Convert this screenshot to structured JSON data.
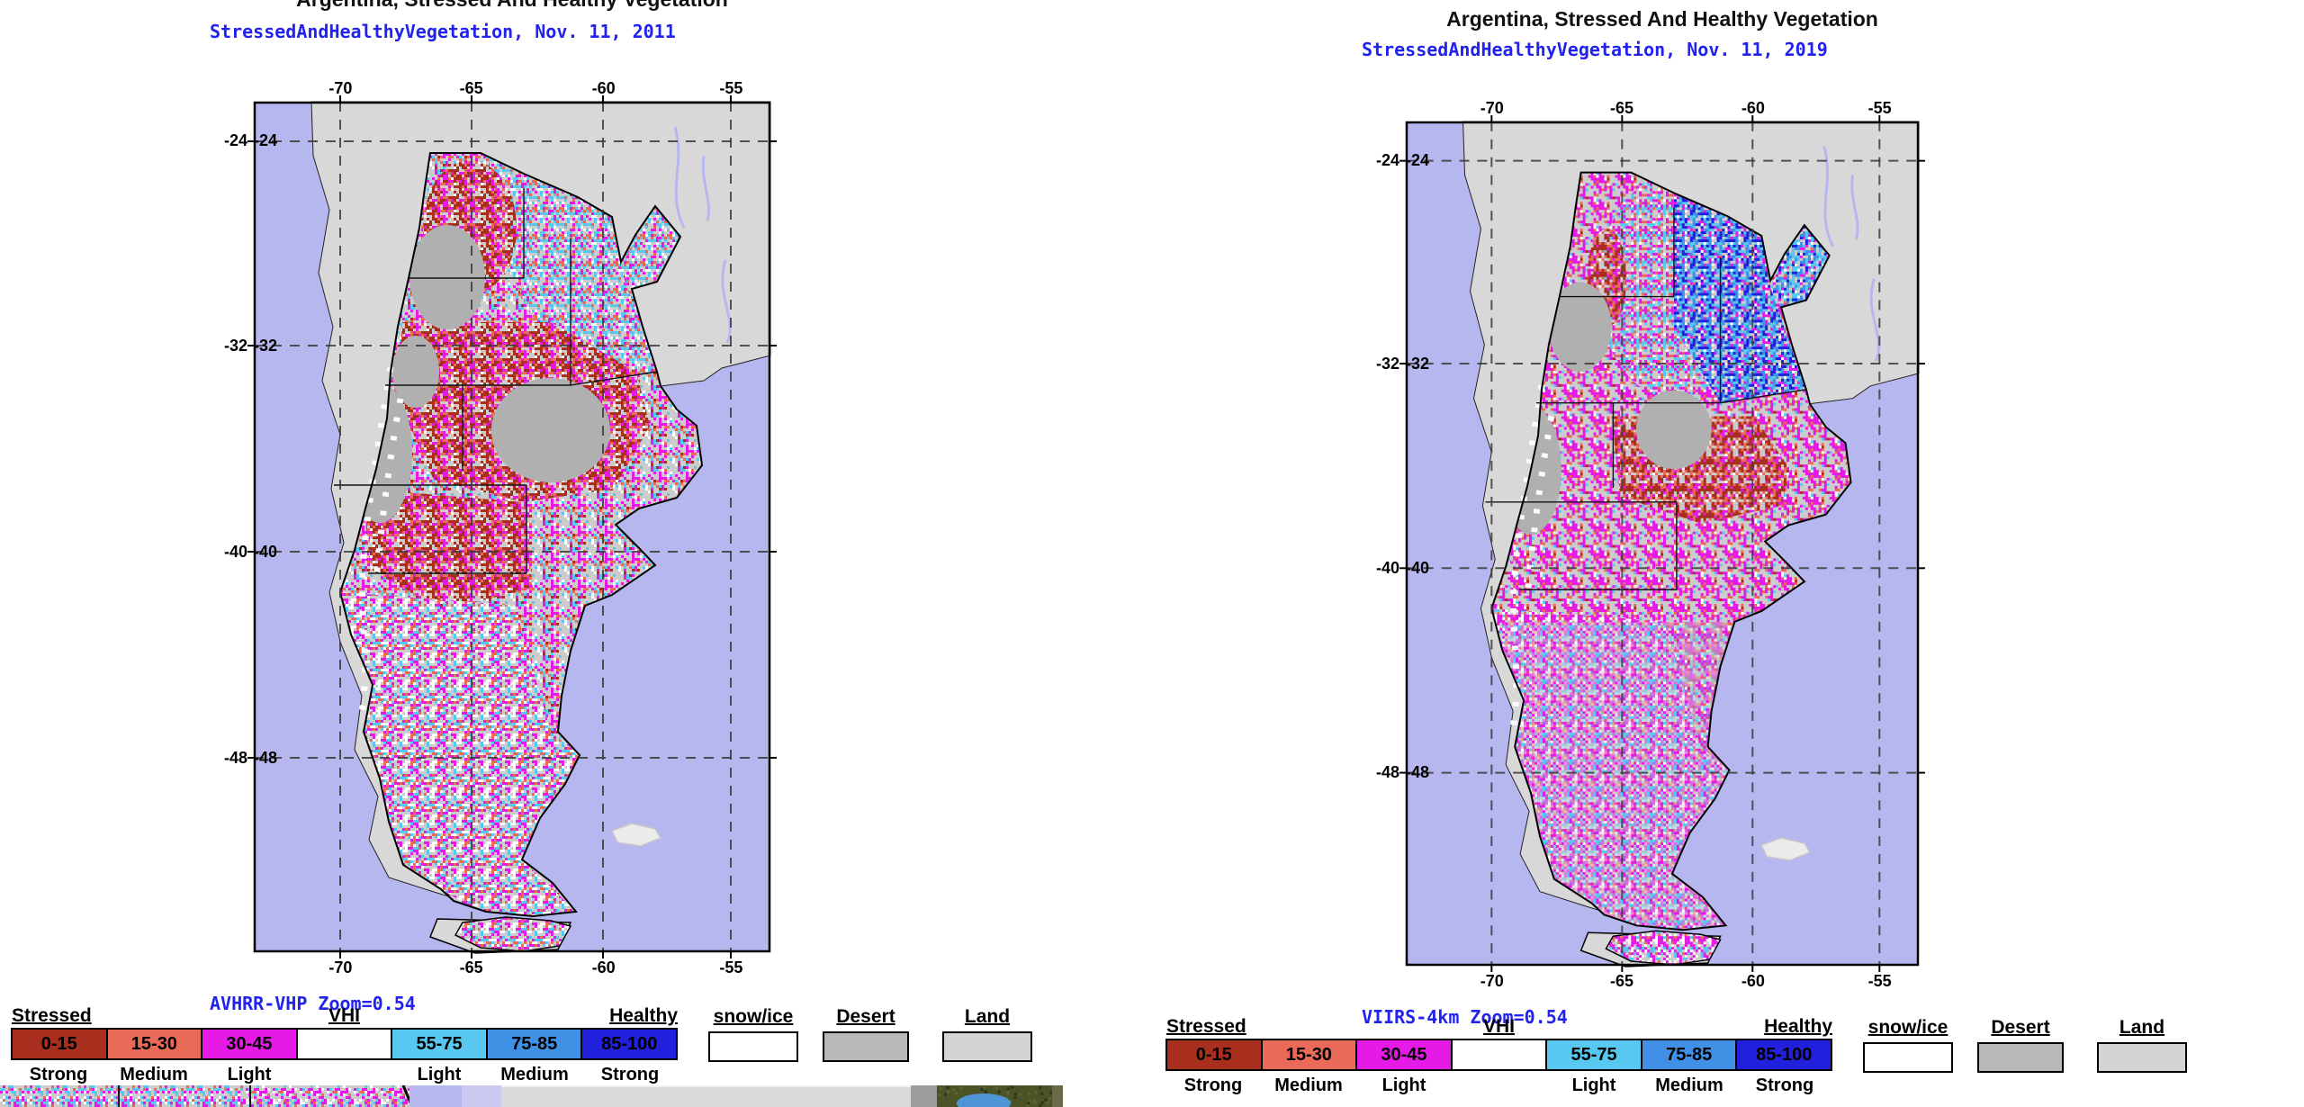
{
  "panels": [
    {
      "title": "Argentina, Stressed And Healthy Vegetation",
      "subtitle": "StressedAndHealthyVegetation, Nov. 11, 2011",
      "caption": "AVHRR-VHP Zoom=0.54",
      "sensor": "AVHRR-VHP",
      "date": "Nov. 11, 2011",
      "lon_ticks": [
        "-70",
        "-65",
        "-60",
        "-55"
      ],
      "lat_ticks": [
        "-24",
        "-32",
        "-40",
        "-48"
      ]
    },
    {
      "title": "Argentina, Stressed And Healthy Vegetation",
      "subtitle": "StressedAndHealthyVegetation, Nov. 11, 2019",
      "caption": "VIIRS-4km Zoom=0.54",
      "sensor": "VIIRS-4km",
      "date": "Nov. 11, 2019",
      "lon_ticks": [
        "-70",
        "-65",
        "-60",
        "-55"
      ],
      "lat_ticks": [
        "-24",
        "-32",
        "-40",
        "-48"
      ]
    }
  ],
  "legend": {
    "header": {
      "stressed": "Stressed",
      "vhi": "VHI",
      "healthy": "Healthy"
    },
    "scale": [
      {
        "range": "0-15",
        "strength": "Strong",
        "color": "#a82e1e"
      },
      {
        "range": "15-30",
        "strength": "Medium",
        "color": "#ea6a58"
      },
      {
        "range": "30-45",
        "strength": "Light",
        "color": "#e61ae6"
      },
      {
        "range": "",
        "strength": "",
        "color": "#ffffff"
      },
      {
        "range": "55-75",
        "strength": "Light",
        "color": "#58c8f0"
      },
      {
        "range": "75-85",
        "strength": "Medium",
        "color": "#4090e6"
      },
      {
        "range": "85-100",
        "strength": "Strong",
        "color": "#2020dd"
      }
    ],
    "extra_boxes": [
      {
        "label": "snow/ice",
        "color": "#ffffff"
      },
      {
        "label": "Desert",
        "color": "#b8b8b8"
      },
      {
        "label": "Land",
        "color": "#d4d4d4"
      }
    ]
  },
  "map_colors": {
    "ocean": "#b7b7f0",
    "land_outer": "#d8d8d8",
    "land_base": "#cccccc",
    "no_data": "#b0b0b0",
    "stressed_strong": "#a82e1e",
    "stressed_medium": "#ea6a58",
    "stressed_light": "#e61ae6",
    "healthy_light": "#58c8f0",
    "healthy_medium": "#4090e6",
    "healthy_strong": "#2020dd",
    "snow": "#ffffff",
    "text_blue": "#2222ee"
  }
}
